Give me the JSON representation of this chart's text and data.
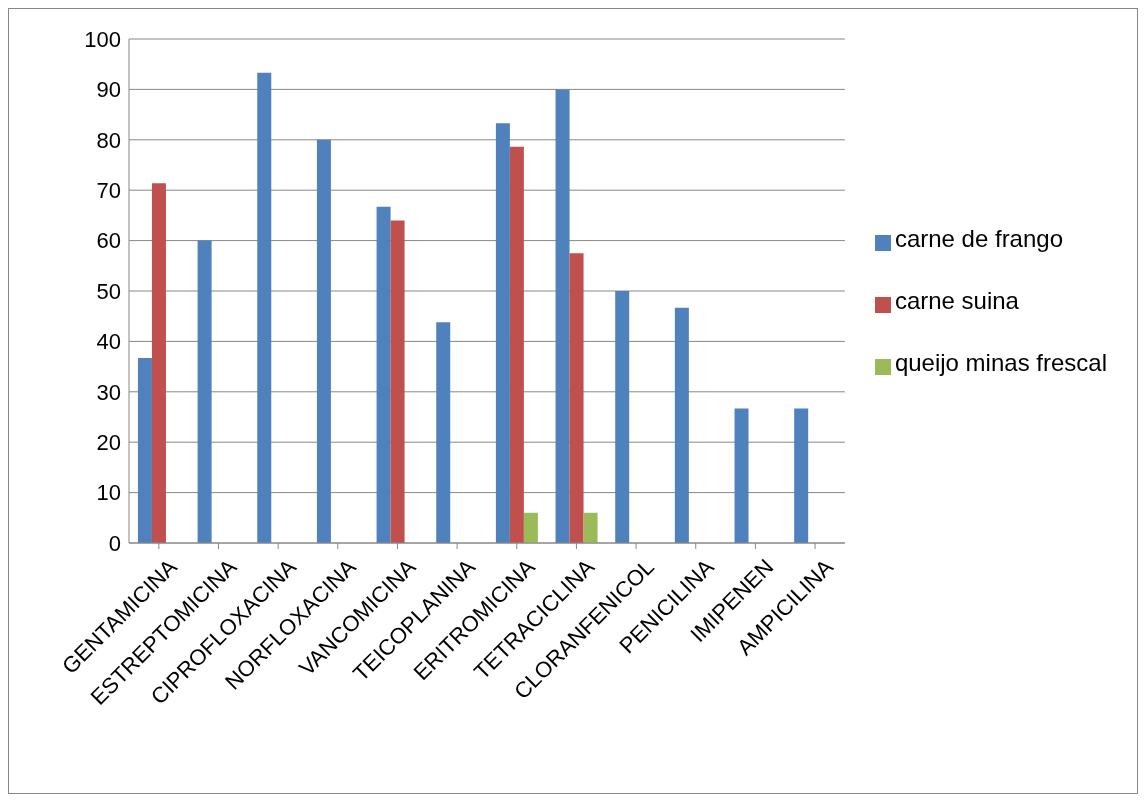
{
  "chart_data": {
    "type": "bar",
    "categories": [
      "GENTAMICINA",
      "ESTREPTOMICINA",
      "CIPROFLOXACINA",
      "NORFLOXACINA",
      "VANCOMICINA",
      "TEICOPLANINA",
      "ERITROMICINA",
      "TETRACICLINA",
      "CLORANFENICOL",
      "PENICILINA",
      "IMIPENEN",
      "AMPICILINA"
    ],
    "series": [
      {
        "name": "carne de frango",
        "color": "#4f81bd",
        "values": [
          36.7,
          60,
          93.3,
          80,
          66.7,
          43.8,
          83.3,
          90,
          50,
          46.7,
          26.7,
          26.7
        ]
      },
      {
        "name": "carne suina",
        "color": "#c0504d",
        "values": [
          71.4,
          null,
          null,
          null,
          64,
          null,
          78.6,
          57.5,
          null,
          null,
          null,
          null
        ]
      },
      {
        "name": "queijo minas frescal",
        "color": "#9bbb59",
        "values": [
          null,
          null,
          null,
          null,
          null,
          null,
          6,
          6,
          null,
          null,
          null,
          null
        ]
      }
    ],
    "ylim": [
      0,
      100
    ],
    "yticks": [
      0,
      10,
      20,
      30,
      40,
      50,
      60,
      70,
      80,
      90,
      100
    ],
    "grid": "y",
    "legend": "right"
  }
}
